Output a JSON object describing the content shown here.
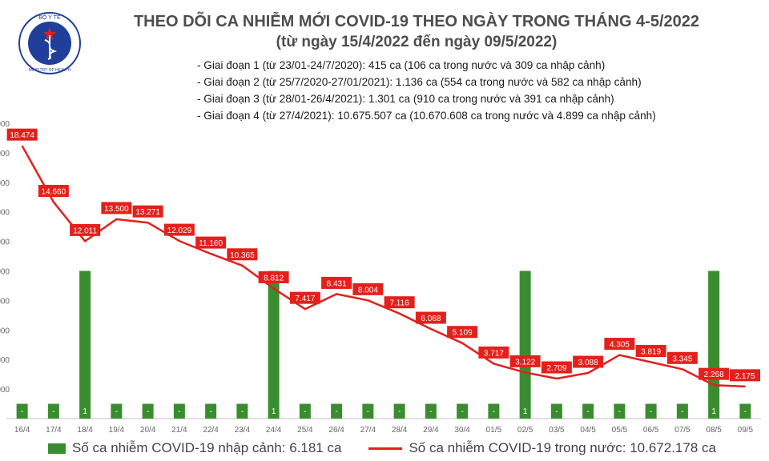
{
  "header": {
    "logo_text_top": "BỘ Y TẾ",
    "logo_text_bottom": "MINISTRY OF HEALTH",
    "title": "THEO DÕI CA NHIỄM MỚI COVID-19 THEO NGÀY TRONG THÁNG 4-5/2022",
    "subtitle": "(từ ngày 15/4/2022 đến ngày 09/5/2022)",
    "phases": [
      "- Giai đoạn 1 (từ 23/01-24/7/2020): 415 ca (106 ca trong nước và 309 ca nhập cảnh)",
      "- Giai đoạn 2 (từ 25/7/2020-27/01/2021): 1.136 ca (554 ca trong nước và 582 ca nhập cảnh)",
      "- Giai đoạn 3 (từ 28/01-26/4/2021): 1.301 ca (910 ca trong nước và 391 ca nhập cảnh)",
      "- Giai đoạn 4 (từ 27/4/2021): 10.675.507 ca (10.670.608 ca trong nước và 4.899 ca nhập cảnh)"
    ]
  },
  "colors": {
    "bar": "#3a8d2f",
    "line": "#e3201b",
    "label_bg": "#e3201b",
    "axis": "#bfbfbf",
    "grid": "#d9d9d9"
  },
  "chart_data": {
    "type": "bar+line",
    "categories": [
      "16/4",
      "17/4",
      "18/4",
      "19/4",
      "20/4",
      "21/4",
      "22/4",
      "23/4",
      "24/4",
      "25/4",
      "26/4",
      "27/4",
      "28/4",
      "29/4",
      "30/4",
      "01/5",
      "02/5",
      "03/5",
      "04/5",
      "05/5",
      "06/5",
      "07/5",
      "08/5",
      "09/5"
    ],
    "series": [
      {
        "name": "Số ca nhiễm COVID-19 nhập cảnh: 6.181 ca",
        "kind": "bar",
        "values": [
          0,
          0,
          1,
          0,
          0,
          0,
          0,
          0,
          1,
          0,
          0,
          0,
          0,
          0,
          0,
          0,
          1,
          0,
          0,
          0,
          0,
          0,
          1,
          0
        ],
        "labels": [
          "-",
          "-",
          "1",
          "-",
          "-",
          "-",
          "-",
          "-",
          "1",
          "-",
          "-",
          "-",
          "-",
          "-",
          "-",
          "-",
          "1",
          "-",
          "-",
          "-",
          "-",
          "-",
          "1",
          "-"
        ]
      },
      {
        "name": "Số ca nhiễm COVID-19 trong nước: 10.672.178 ca",
        "kind": "line",
        "values": [
          18474,
          14660,
          12011,
          13500,
          13271,
          12029,
          11160,
          10365,
          8812,
          7417,
          8431,
          8004,
          7116,
          6068,
          5109,
          3717,
          3122,
          2709,
          3088,
          4305,
          3819,
          3345,
          2268,
          2175
        ],
        "labels": [
          "18.474",
          "14.660",
          "12.011",
          "13.500",
          "13.271",
          "12.029",
          "11.160",
          "10.365",
          "8.812",
          "7.417",
          "8.431",
          "8.004",
          "7.116",
          "6.068",
          "5.109",
          "3.717",
          "3.122",
          "2.709",
          "3.088",
          "4.305",
          "3.819",
          "3.345",
          "2.268",
          "2.175"
        ]
      }
    ],
    "ylim": [
      0,
      20000
    ],
    "y_tick_labels": [
      "",
      "000",
      "000",
      "000",
      "000",
      "000",
      "000",
      "000",
      "000",
      "000",
      "000"
    ],
    "grid": false,
    "legend_position": "bottom"
  }
}
